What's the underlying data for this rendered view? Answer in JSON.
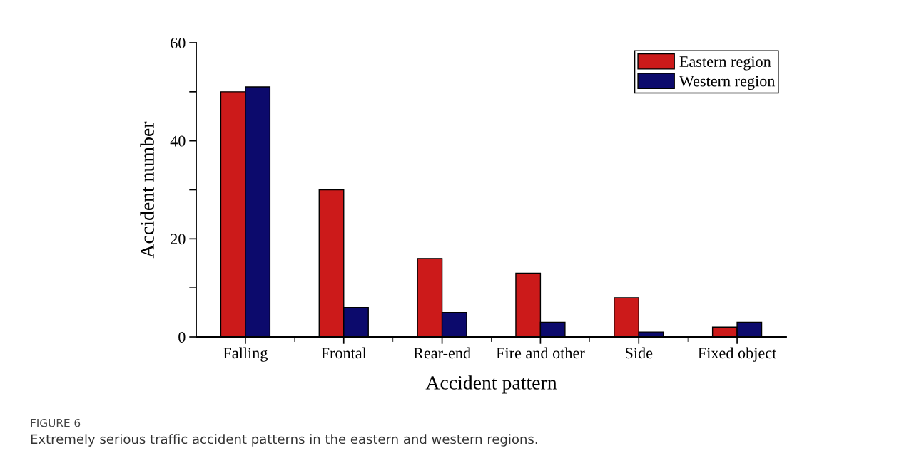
{
  "chart_data": {
    "type": "bar",
    "xlabel": "Accident pattern",
    "ylabel": "Accident number",
    "categories": [
      "Falling",
      "Frontal",
      "Rear-end",
      "Fire and other",
      "Side",
      "Fixed object"
    ],
    "series": [
      {
        "name": "Eastern region",
        "color": "#cc1a1a",
        "values": [
          50,
          30,
          16,
          13,
          8,
          2
        ]
      },
      {
        "name": "Western region",
        "color": "#0c0a6c",
        "values": [
          51,
          6,
          5,
          3,
          1,
          3
        ]
      }
    ],
    "ylim": [
      0,
      60
    ],
    "yticks": [
      0,
      {
        "value": 10,
        "label": null
      },
      20,
      {
        "value": 30,
        "label": null
      },
      40,
      {
        "value": 50,
        "label": null
      },
      60
    ],
    "grid": false,
    "legend": "top right",
    "annotations": [
      "FIGURE 6",
      "Extremely serious traffic accident patterns in the eastern and western regions."
    ]
  }
}
